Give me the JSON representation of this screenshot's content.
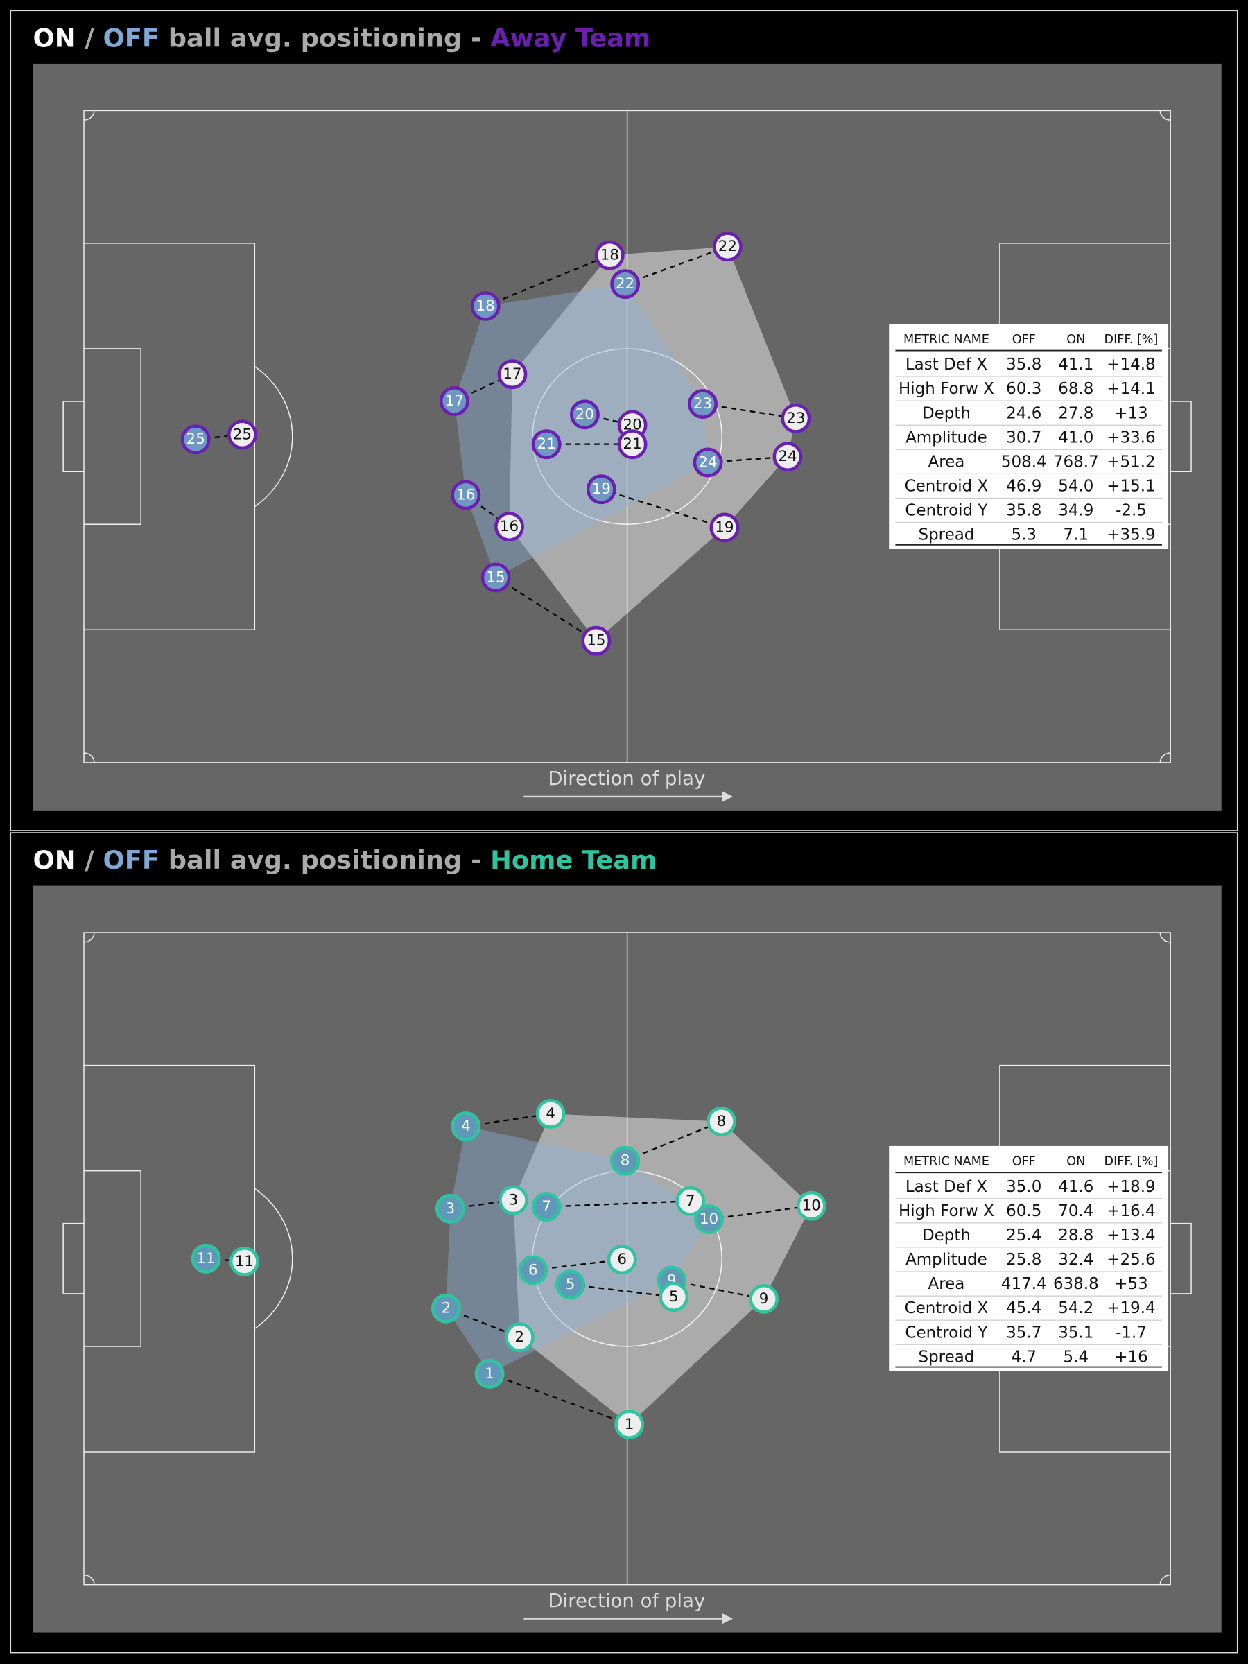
{
  "panels": [
    {
      "title": [
        "ON",
        " / ",
        "OFF",
        " ball avg. positioning - ",
        "Away Team"
      ],
      "title_colors": [
        "#ffffff",
        "#aaaaaa",
        "#7fa8d4",
        "#aaaaaa",
        "#6a1fb0"
      ],
      "team_color": "#6a1fb0",
      "off_fill": "#6f97c4",
      "on_fill": "#eeeeee",
      "players": [
        {
          "number": 25,
          "off": [
            10.8,
            34.3
          ],
          "on": [
            15.3,
            33.8
          ],
          "in_shape": false
        },
        {
          "number": 18,
          "off": [
            38.8,
            20.4
          ],
          "on": [
            50.8,
            15.1
          ],
          "in_shape": true
        },
        {
          "number": 22,
          "off": [
            52.3,
            18.1
          ],
          "on": [
            62.2,
            14.2
          ],
          "in_shape": true
        },
        {
          "number": 17,
          "off": [
            35.8,
            30.3
          ],
          "on": [
            41.4,
            27.5
          ],
          "in_shape": true
        },
        {
          "number": 20,
          "off": [
            48.4,
            31.7
          ],
          "on": [
            53.0,
            32.8
          ],
          "in_shape": true
        },
        {
          "number": 21,
          "off": [
            44.7,
            34.8
          ],
          "on": [
            53.0,
            34.8
          ],
          "in_shape": true
        },
        {
          "number": 23,
          "off": [
            59.8,
            30.6
          ],
          "on": [
            68.8,
            32.1
          ],
          "in_shape": true
        },
        {
          "number": 24,
          "off": [
            60.3,
            36.7
          ],
          "on": [
            68.0,
            36.1
          ],
          "in_shape": true
        },
        {
          "number": 19,
          "off": [
            50.0,
            39.5
          ],
          "on": [
            61.9,
            43.5
          ],
          "in_shape": true
        },
        {
          "number": 16,
          "off": [
            36.9,
            40.1
          ],
          "on": [
            41.1,
            43.4
          ],
          "in_shape": true
        },
        {
          "number": 15,
          "off": [
            39.8,
            48.7
          ],
          "on": [
            49.5,
            55.3
          ],
          "in_shape": true
        }
      ],
      "direction_label": "Direction of play",
      "table": {
        "header": [
          "METRIC NAME",
          "OFF",
          "ON",
          "DIFF. [%]"
        ],
        "rows": [
          [
            "Last Def X",
            "35.8",
            "41.1",
            "+14.8"
          ],
          [
            "High Forw X",
            "60.3",
            "68.8",
            "+14.1"
          ],
          [
            "Depth",
            "24.6",
            "27.8",
            "+13"
          ],
          [
            "Amplitude",
            "30.7",
            "41.0",
            "+33.6"
          ],
          [
            "Area",
            "508.4",
            "768.7",
            "+51.2"
          ],
          [
            "Centroid X",
            "46.9",
            "54.0",
            "+15.1"
          ],
          [
            "Centroid Y",
            "35.8",
            "34.9",
            "-2.5"
          ],
          [
            "Spread",
            "5.3",
            "7.1",
            "+35.9"
          ]
        ]
      }
    },
    {
      "title": [
        "ON",
        " / ",
        "OFF",
        " ball avg. positioning - ",
        "Home Team"
      ],
      "title_colors": [
        "#ffffff",
        "#aaaaaa",
        "#7fa8d4",
        "#aaaaaa",
        "#2ec4a0"
      ],
      "team_color": "#2ec4a0",
      "off_fill": "#5f98b8",
      "on_fill": "#eeeeee",
      "players": [
        {
          "number": 11,
          "off": [
            11.8,
            34.0
          ],
          "on": [
            15.5,
            34.3
          ],
          "in_shape": false
        },
        {
          "number": 4,
          "off": [
            36.9,
            20.2
          ],
          "on": [
            45.1,
            18.9
          ],
          "in_shape": true
        },
        {
          "number": 8,
          "off": [
            52.3,
            23.8
          ],
          "on": [
            61.6,
            19.7
          ],
          "in_shape": true
        },
        {
          "number": 3,
          "off": [
            35.4,
            28.8
          ],
          "on": [
            41.5,
            27.9
          ],
          "in_shape": true
        },
        {
          "number": 7,
          "off": [
            44.7,
            28.6
          ],
          "on": [
            58.6,
            28.0
          ],
          "in_shape": true
        },
        {
          "number": 10,
          "off": [
            60.4,
            29.9
          ],
          "on": [
            70.3,
            28.5
          ],
          "in_shape": true
        },
        {
          "number": 6,
          "off": [
            43.4,
            35.2
          ],
          "on": [
            52.0,
            34.1
          ],
          "in_shape": true
        },
        {
          "number": 5,
          "off": [
            47.0,
            36.7
          ],
          "on": [
            57.0,
            38.0
          ],
          "in_shape": true
        },
        {
          "number": 9,
          "off": [
            56.8,
            36.3
          ],
          "on": [
            65.7,
            38.2
          ],
          "in_shape": true
        },
        {
          "number": 2,
          "off": [
            35.0,
            39.2
          ],
          "on": [
            42.1,
            42.2
          ],
          "in_shape": true
        },
        {
          "number": 1,
          "off": [
            39.2,
            46.0
          ],
          "on": [
            52.7,
            51.3
          ],
          "in_shape": true
        }
      ],
      "direction_label": "Direction of play",
      "table": {
        "header": [
          "METRIC NAME",
          "OFF",
          "ON",
          "DIFF. [%]"
        ],
        "rows": [
          [
            "Last Def X",
            "35.0",
            "41.6",
            "+18.9"
          ],
          [
            "High Forw X",
            "60.5",
            "70.4",
            "+16.4"
          ],
          [
            "Depth",
            "25.4",
            "28.8",
            "+13.4"
          ],
          [
            "Amplitude",
            "25.8",
            "32.4",
            "+25.6"
          ],
          [
            "Area",
            "417.4",
            "638.8",
            "+53"
          ],
          [
            "Centroid X",
            "45.4",
            "54.2",
            "+19.4"
          ],
          [
            "Centroid Y",
            "35.7",
            "35.1",
            "-1.7"
          ],
          [
            "Spread",
            "4.7",
            "5.4",
            "+16"
          ]
        ]
      }
    }
  ]
}
